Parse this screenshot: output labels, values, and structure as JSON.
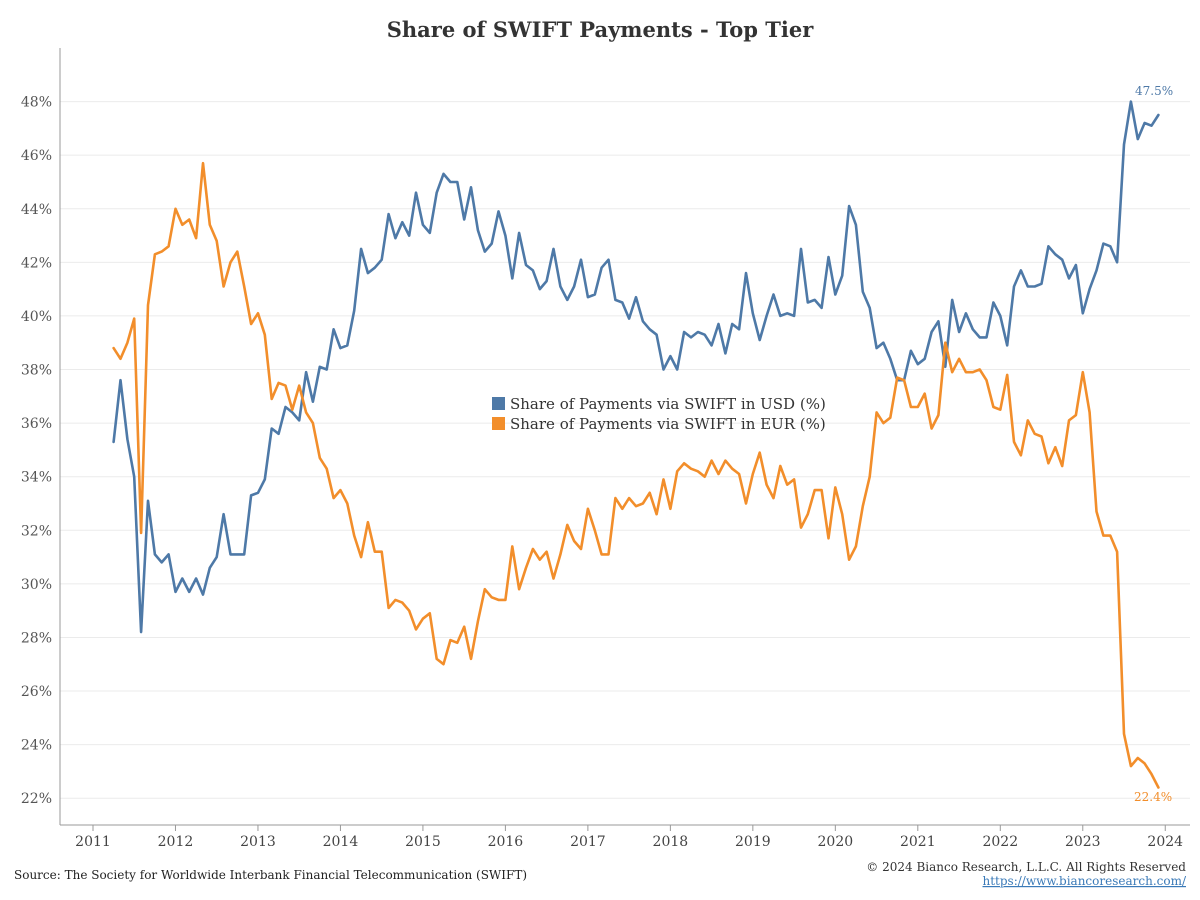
{
  "chart_data": {
    "type": "line",
    "title": "Share of SWIFT Payments - Top Tier",
    "ylim": [
      21,
      50
    ],
    "yticks": [
      22,
      24,
      26,
      28,
      30,
      32,
      34,
      36,
      38,
      40,
      42,
      44,
      46,
      48
    ],
    "ytick_labels": [
      "22%",
      "24%",
      "26%",
      "28%",
      "30%",
      "32%",
      "34%",
      "36%",
      "38%",
      "40%",
      "42%",
      "44%",
      "46%",
      "48%"
    ],
    "xlim": [
      2010.6,
      2024.3
    ],
    "xticks": [
      2011,
      2012,
      2013,
      2014,
      2015,
      2016,
      2017,
      2018,
      2019,
      2020,
      2021,
      2022,
      2023,
      2024
    ],
    "xtick_labels": [
      "2011",
      "2012",
      "2013",
      "2014",
      "2015",
      "2016",
      "2017",
      "2018",
      "2019",
      "2020",
      "2021",
      "2022",
      "2023",
      "2024"
    ],
    "grid": true,
    "legend_position": "center",
    "start_date": "2011-04",
    "series": [
      {
        "name": "Share of Payments via SWIFT in USD (%)",
        "color": "#4e79a7",
        "end_label": "47.5%",
        "values": [
          35.3,
          37.6,
          35.4,
          34.0,
          28.2,
          33.1,
          31.1,
          30.8,
          31.1,
          29.7,
          30.2,
          29.7,
          30.2,
          29.6,
          30.6,
          31.0,
          32.6,
          31.1,
          31.1,
          31.1,
          33.3,
          33.4,
          33.9,
          35.8,
          35.6,
          36.6,
          36.4,
          36.1,
          37.9,
          36.8,
          38.1,
          38.0,
          39.5,
          38.8,
          38.9,
          40.2,
          42.5,
          41.6,
          41.8,
          42.1,
          43.8,
          42.9,
          43.5,
          43.0,
          44.6,
          43.4,
          43.1,
          44.6,
          45.3,
          45.0,
          45.0,
          43.6,
          44.8,
          43.2,
          42.4,
          42.7,
          43.9,
          43.0,
          41.4,
          43.1,
          41.9,
          41.7,
          41.0,
          41.3,
          42.5,
          41.1,
          40.6,
          41.1,
          42.1,
          40.7,
          40.8,
          41.8,
          42.1,
          40.6,
          40.5,
          39.9,
          40.7,
          39.8,
          39.5,
          39.3,
          38.0,
          38.5,
          38.0,
          39.4,
          39.2,
          39.4,
          39.3,
          38.9,
          39.7,
          38.6,
          39.7,
          39.5,
          41.6,
          40.1,
          39.1,
          40.0,
          40.8,
          40.0,
          40.1,
          40.0,
          42.5,
          40.5,
          40.6,
          40.3,
          42.2,
          40.8,
          41.5,
          44.1,
          43.4,
          40.9,
          40.3,
          38.8,
          39.0,
          38.4,
          37.6,
          37.6,
          38.7,
          38.2,
          38.4,
          39.4,
          39.8,
          38.1,
          40.6,
          39.4,
          40.1,
          39.5,
          39.2,
          39.2,
          40.5,
          40.0,
          38.9,
          41.1,
          41.7,
          41.1,
          41.1,
          41.2,
          42.6,
          42.3,
          42.1,
          41.4,
          41.9,
          40.1,
          41.0,
          41.7,
          42.7,
          42.6,
          42.0,
          46.4,
          48.0,
          46.6,
          47.2,
          47.1,
          47.5
        ]
      },
      {
        "name": "Share of Payments via SWIFT in EUR (%)",
        "color": "#f28e2b",
        "end_label": "22.4%",
        "values": [
          38.8,
          38.4,
          39.0,
          39.9,
          31.9,
          40.4,
          42.3,
          42.4,
          42.6,
          44.0,
          43.4,
          43.6,
          42.9,
          45.7,
          43.4,
          42.8,
          41.1,
          42.0,
          42.4,
          41.1,
          39.7,
          40.1,
          39.3,
          36.9,
          37.5,
          37.4,
          36.5,
          37.4,
          36.4,
          36.0,
          34.7,
          34.3,
          33.2,
          33.5,
          33.0,
          31.8,
          31.0,
          32.3,
          31.2,
          31.2,
          29.1,
          29.4,
          29.3,
          29.0,
          28.3,
          28.7,
          28.9,
          27.2,
          27.0,
          27.9,
          27.8,
          28.4,
          27.2,
          28.6,
          29.8,
          29.5,
          29.4,
          29.4,
          31.4,
          29.8,
          30.6,
          31.3,
          30.9,
          31.2,
          30.2,
          31.1,
          32.2,
          31.6,
          31.3,
          32.8,
          32.0,
          31.1,
          31.1,
          33.2,
          32.8,
          33.2,
          32.9,
          33.0,
          33.4,
          32.6,
          33.9,
          32.8,
          34.2,
          34.5,
          34.3,
          34.2,
          34.0,
          34.6,
          34.1,
          34.6,
          34.3,
          34.1,
          33.0,
          34.1,
          34.9,
          33.7,
          33.2,
          34.4,
          33.7,
          33.9,
          32.1,
          32.6,
          33.5,
          33.5,
          31.7,
          33.6,
          32.6,
          30.9,
          31.4,
          32.9,
          34.0,
          36.4,
          36.0,
          36.2,
          37.7,
          37.6,
          36.6,
          36.6,
          37.1,
          35.8,
          36.3,
          39.0,
          37.9,
          38.4,
          37.9,
          37.9,
          38.0,
          37.6,
          36.6,
          36.5,
          37.8,
          35.3,
          34.8,
          36.1,
          35.6,
          35.5,
          34.5,
          35.1,
          34.4,
          36.1,
          36.3,
          37.9,
          36.4,
          32.7,
          31.8,
          31.8,
          31.2,
          24.4,
          23.2,
          23.5,
          23.3,
          22.9,
          22.4
        ]
      }
    ]
  },
  "footer": {
    "source": "Source: The Society for Worldwide Interbank Financial Telecommunication (SWIFT)",
    "copyright": "© 2024 Bianco Research, L.L.C. All Rights Reserved",
    "url": "https://www.biancoresearch.com/"
  }
}
